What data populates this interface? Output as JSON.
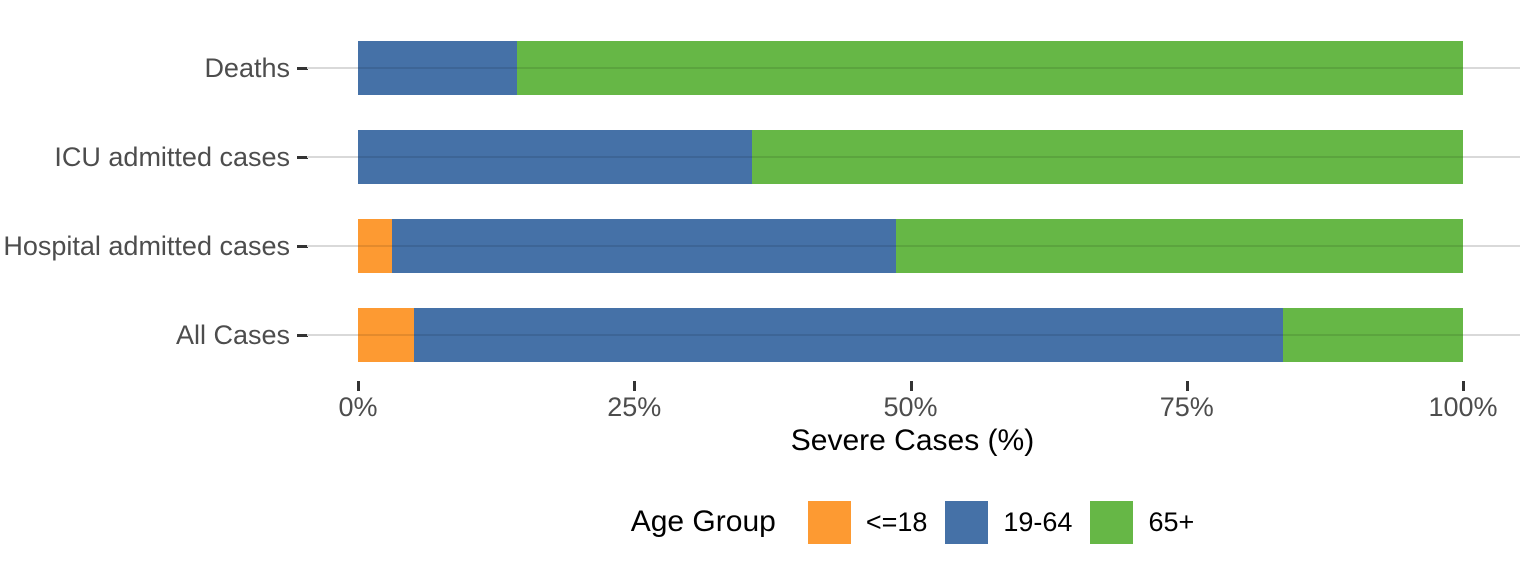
{
  "chart_data": {
    "type": "bar",
    "orientation": "horizontal",
    "stacked": true,
    "unit": "percent",
    "title": "",
    "xlabel": "Severe Cases (%)",
    "ylabel": "",
    "xlim": [
      0,
      100
    ],
    "x_ticks": [
      "0%",
      "25%",
      "50%",
      "75%",
      "100%"
    ],
    "x_tick_values": [
      0,
      25,
      50,
      75,
      100
    ],
    "grid": "major-y-only",
    "categories": [
      "Deaths",
      "ICU admitted cases",
      "Hospital admitted cases",
      "All Cases"
    ],
    "series": [
      {
        "name": "<=18",
        "color": "#FD9A32",
        "values": [
          0.0,
          0.0,
          3.1,
          5.1
        ]
      },
      {
        "name": "19-64",
        "color": "#4571A7",
        "values": [
          14.4,
          35.7,
          45.6,
          78.6
        ]
      },
      {
        "name": "65+",
        "color": "#66B746",
        "values": [
          85.6,
          64.3,
          51.3,
          16.3
        ]
      }
    ],
    "legend": {
      "title": "Age Group",
      "position": "bottom",
      "entries": [
        "<=18",
        "19-64",
        "65+"
      ]
    },
    "colors": {
      "gridline": "#d9d9d9",
      "axis_text": "#4d4d4d",
      "tick_mark": "#333333",
      "background": "#ffffff"
    }
  }
}
